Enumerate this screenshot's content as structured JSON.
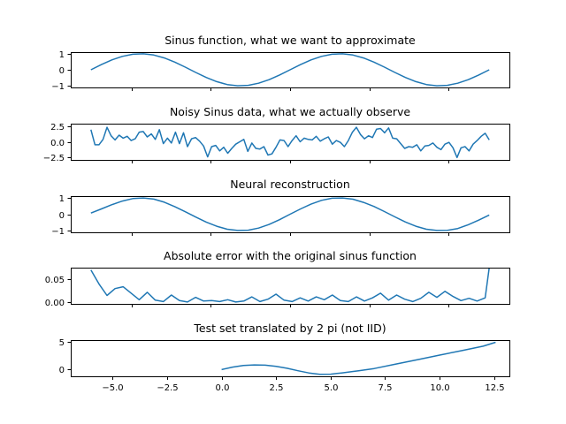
{
  "line_color": "#1f77b4",
  "chart_data": [
    {
      "type": "line",
      "title": "Sinus function, what we want to approximate",
      "xlim": [
        -6.92,
        6.92
      ],
      "ylim": [
        -1.1,
        1.1
      ],
      "xticks": [
        -5.0,
        -2.5,
        0.0,
        2.5,
        5.0
      ],
      "yticks": [
        -1,
        0,
        1
      ],
      "ytick_labels": [
        "−1",
        "0",
        "1"
      ],
      "x_tick_labels_visible": false,
      "grid": false,
      "x": [
        -6.2832,
        -5.9525,
        -5.6218,
        -5.2911,
        -4.9604,
        -4.6298,
        -4.2991,
        -3.9684,
        -3.6377,
        -3.307,
        -2.9763,
        -2.6456,
        -2.315,
        -1.9843,
        -1.6536,
        -1.3229,
        -0.9922,
        -0.6615,
        -0.3308,
        0.0,
        0.3308,
        0.6615,
        0.9922,
        1.3229,
        1.6536,
        1.9843,
        2.315,
        2.6456,
        2.9763,
        3.307,
        3.6377,
        3.9684,
        4.2991,
        4.6298,
        4.9604,
        5.2911,
        5.6218,
        5.9525,
        6.2832
      ],
      "y": [
        0.0,
        0.324,
        0.614,
        0.837,
        0.969,
        0.997,
        0.916,
        0.736,
        0.476,
        0.165,
        -0.165,
        -0.476,
        -0.736,
        -0.916,
        -0.997,
        -0.969,
        -0.837,
        -0.614,
        -0.324,
        0.0,
        0.324,
        0.614,
        0.837,
        0.969,
        0.997,
        0.916,
        0.736,
        0.476,
        0.165,
        -0.165,
        -0.476,
        -0.736,
        -0.916,
        -0.997,
        -0.969,
        -0.837,
        -0.614,
        -0.324,
        0.0
      ]
    },
    {
      "type": "line",
      "title": "Noisy Sinus data, what we actually observe",
      "xlim": [
        -6.92,
        6.92
      ],
      "ylim": [
        -3.0,
        3.0
      ],
      "xticks": [
        -5.0,
        -2.5,
        0.0,
        2.5,
        5.0
      ],
      "yticks": [
        -2.5,
        0.0,
        2.5
      ],
      "ytick_labels": [
        "−2.5",
        "0.0",
        "2.5"
      ],
      "x_tick_labels_visible": false,
      "grid": false,
      "x": [
        -6.2832,
        -6.1563,
        -6.0293,
        -5.9024,
        -5.7754,
        -5.6485,
        -5.5215,
        -5.3946,
        -5.2677,
        -5.1407,
        -5.0138,
        -4.8868,
        -4.7599,
        -4.6329,
        -4.506,
        -4.379,
        -4.2521,
        -4.1252,
        -3.9982,
        -3.8713,
        -3.7443,
        -3.6174,
        -3.4904,
        -3.3635,
        -3.2365,
        -3.1096,
        -2.9827,
        -2.8557,
        -2.7288,
        -2.6018,
        -2.4749,
        -2.3479,
        -2.221,
        -2.094,
        -1.9671,
        -1.8402,
        -1.7132,
        -1.5863,
        -1.4593,
        -1.3324,
        -1.2054,
        -1.0785,
        -0.9516,
        -0.8246,
        -0.6977,
        -0.5707,
        -0.4438,
        -0.3168,
        -0.1899,
        -0.0629,
        0.0629,
        0.1899,
        0.3168,
        0.4438,
        0.5707,
        0.6977,
        0.8246,
        0.9516,
        1.0785,
        1.2054,
        1.3324,
        1.4593,
        1.5863,
        1.7132,
        1.8402,
        1.9671,
        2.094,
        2.221,
        2.3479,
        2.4749,
        2.6018,
        2.7288,
        2.8557,
        2.9827,
        3.1096,
        3.2365,
        3.3635,
        3.4904,
        3.6174,
        3.7443,
        3.8713,
        3.9982,
        4.1252,
        4.2521,
        4.379,
        4.506,
        4.6329,
        4.7599,
        4.8868,
        5.0138,
        5.1407,
        5.2677,
        5.3946,
        5.5215,
        5.6485,
        5.7754,
        5.9024,
        6.0293,
        6.1563,
        6.2832
      ],
      "y": [
        2.0,
        -0.5,
        -0.5,
        0.4,
        2.4,
        1.0,
        0.3,
        1.1,
        0.6,
        0.9,
        0.2,
        0.5,
        1.6,
        1.7,
        0.8,
        1.3,
        0.4,
        2.0,
        -0.3,
        0.6,
        -0.2,
        1.6,
        -0.3,
        1.5,
        -0.8,
        0.5,
        0.7,
        0.1,
        -0.7,
        -2.5,
        -0.8,
        -0.6,
        -1.5,
        -0.9,
        -1.9,
        -1.1,
        -0.4,
        0.0,
        0.4,
        -1.6,
        -0.2,
        -1.1,
        -1.2,
        -0.8,
        -2.2,
        -2.0,
        -0.9,
        0.3,
        0.2,
        -0.8,
        0.2,
        1.0,
        0.0,
        0.6,
        0.4,
        0.3,
        0.9,
        0.1,
        0.5,
        0.8,
        -0.4,
        0.2,
        -0.1,
        -0.8,
        0.2,
        1.6,
        2.4,
        1.2,
        0.5,
        1.0,
        0.7,
        2.1,
        2.2,
        1.5,
        2.3,
        0.6,
        0.5,
        -0.3,
        -1.1,
        -0.8,
        -0.9,
        -0.5,
        -1.5,
        -0.7,
        -0.6,
        -0.2,
        -0.9,
        -1.3,
        -0.4,
        -0.1,
        -1.0,
        -2.6,
        -1.0,
        -0.8,
        -1.5,
        -0.4,
        0.2,
        0.9,
        1.4,
        0.3
      ]
    },
    {
      "type": "line",
      "title": "Neural reconstruction",
      "xlim": [
        -6.92,
        6.92
      ],
      "ylim": [
        -1.1,
        1.1
      ],
      "xticks": [
        -5.0,
        -2.5,
        0.0,
        2.5,
        5.0
      ],
      "yticks": [
        -1,
        0,
        1
      ],
      "ytick_labels": [
        "−1",
        "0",
        "1"
      ],
      "x_tick_labels_visible": false,
      "grid": false,
      "x": [
        -6.2832,
        -5.9525,
        -5.6218,
        -5.2911,
        -4.9604,
        -4.6298,
        -4.2991,
        -3.9684,
        -3.6377,
        -3.307,
        -2.9763,
        -2.6456,
        -2.315,
        -1.9843,
        -1.6536,
        -1.3229,
        -0.9922,
        -0.6615,
        -0.3308,
        0.0,
        0.3308,
        0.6615,
        0.9922,
        1.3229,
        1.6536,
        1.9843,
        2.315,
        2.6456,
        2.9763,
        3.307,
        3.6377,
        3.9684,
        4.2991,
        4.6298,
        4.9604,
        5.2911,
        5.6218,
        5.9525,
        6.2832
      ],
      "y": [
        0.07,
        0.32,
        0.58,
        0.8,
        0.95,
        0.99,
        0.92,
        0.73,
        0.46,
        0.15,
        -0.17,
        -0.48,
        -0.73,
        -0.91,
        -0.99,
        -0.97,
        -0.84,
        -0.62,
        -0.33,
        0.0,
        0.32,
        0.61,
        0.84,
        0.97,
        0.99,
        0.91,
        0.72,
        0.47,
        0.16,
        -0.16,
        -0.47,
        -0.73,
        -0.91,
        -0.99,
        -0.98,
        -0.87,
        -0.64,
        -0.36,
        -0.05
      ]
    },
    {
      "type": "line",
      "title": "Absolute error with the original sinus function",
      "xlim": [
        -6.92,
        6.92
      ],
      "ylim": [
        -0.003,
        0.075
      ],
      "xticks": [
        -5.0,
        -2.5,
        0.0,
        2.5,
        5.0
      ],
      "yticks": [
        0.0,
        0.05
      ],
      "ytick_labels": [
        "0.00",
        "0.05"
      ],
      "x_tick_labels_visible": false,
      "grid": false,
      "x": [
        -6.2832,
        -6.0293,
        -5.7754,
        -5.5215,
        -5.2677,
        -5.0138,
        -4.7599,
        -4.506,
        -4.2521,
        -3.9982,
        -3.7443,
        -3.4904,
        -3.2365,
        -2.9827,
        -2.7288,
        -2.4749,
        -2.221,
        -1.9671,
        -1.7132,
        -1.4593,
        -1.2054,
        -0.9516,
        -0.6977,
        -0.4438,
        -0.1899,
        0.0629,
        0.3168,
        0.5707,
        0.8246,
        1.0785,
        1.3324,
        1.5863,
        1.8402,
        2.094,
        2.3479,
        2.6018,
        2.8557,
        3.1096,
        3.3635,
        3.6174,
        3.8713,
        4.1252,
        4.379,
        4.6329,
        4.8868,
        5.1407,
        5.3946,
        5.6485,
        5.9024,
        6.1563,
        6.2832
      ],
      "y": [
        0.07,
        0.04,
        0.015,
        0.03,
        0.034,
        0.02,
        0.006,
        0.022,
        0.005,
        0.002,
        0.016,
        0.004,
        0.001,
        0.011,
        0.003,
        0.004,
        0.002,
        0.006,
        0.001,
        0.003,
        0.012,
        0.002,
        0.007,
        0.018,
        0.005,
        0.002,
        0.01,
        0.003,
        0.012,
        0.006,
        0.016,
        0.004,
        0.002,
        0.012,
        0.003,
        0.01,
        0.02,
        0.005,
        0.016,
        0.007,
        0.002,
        0.009,
        0.022,
        0.011,
        0.024,
        0.013,
        0.004,
        0.009,
        0.003,
        0.01,
        0.075
      ]
    },
    {
      "type": "line",
      "title": "Test set translated by 2 pi (not IID)",
      "xlim": [
        -6.92,
        13.2
      ],
      "ylim": [
        -1.2,
        5.3
      ],
      "xticks": [
        -5.0,
        -2.5,
        0.0,
        2.5,
        5.0,
        7.5,
        10.0,
        12.5
      ],
      "xtick_labels": [
        "−5.0",
        "−2.5",
        "0.0",
        "2.5",
        "5.0",
        "7.5",
        "10.0",
        "12.5"
      ],
      "yticks": [
        0,
        5
      ],
      "ytick_labels": [
        "0",
        "5"
      ],
      "x_tick_labels_visible": true,
      "grid": false,
      "x": [
        0.0,
        0.5,
        1.0,
        1.5,
        2.0,
        2.5,
        3.0,
        3.5,
        4.0,
        4.5,
        5.0,
        5.5,
        6.0,
        6.2832,
        7.0,
        8.0,
        9.0,
        10.0,
        11.0,
        12.0,
        12.5664
      ],
      "y": [
        0.0,
        0.45,
        0.75,
        0.85,
        0.8,
        0.58,
        0.25,
        -0.2,
        -0.6,
        -0.85,
        -0.82,
        -0.6,
        -0.35,
        -0.2,
        0.2,
        1.0,
        1.8,
        2.6,
        3.4,
        4.2,
        4.9
      ]
    }
  ]
}
